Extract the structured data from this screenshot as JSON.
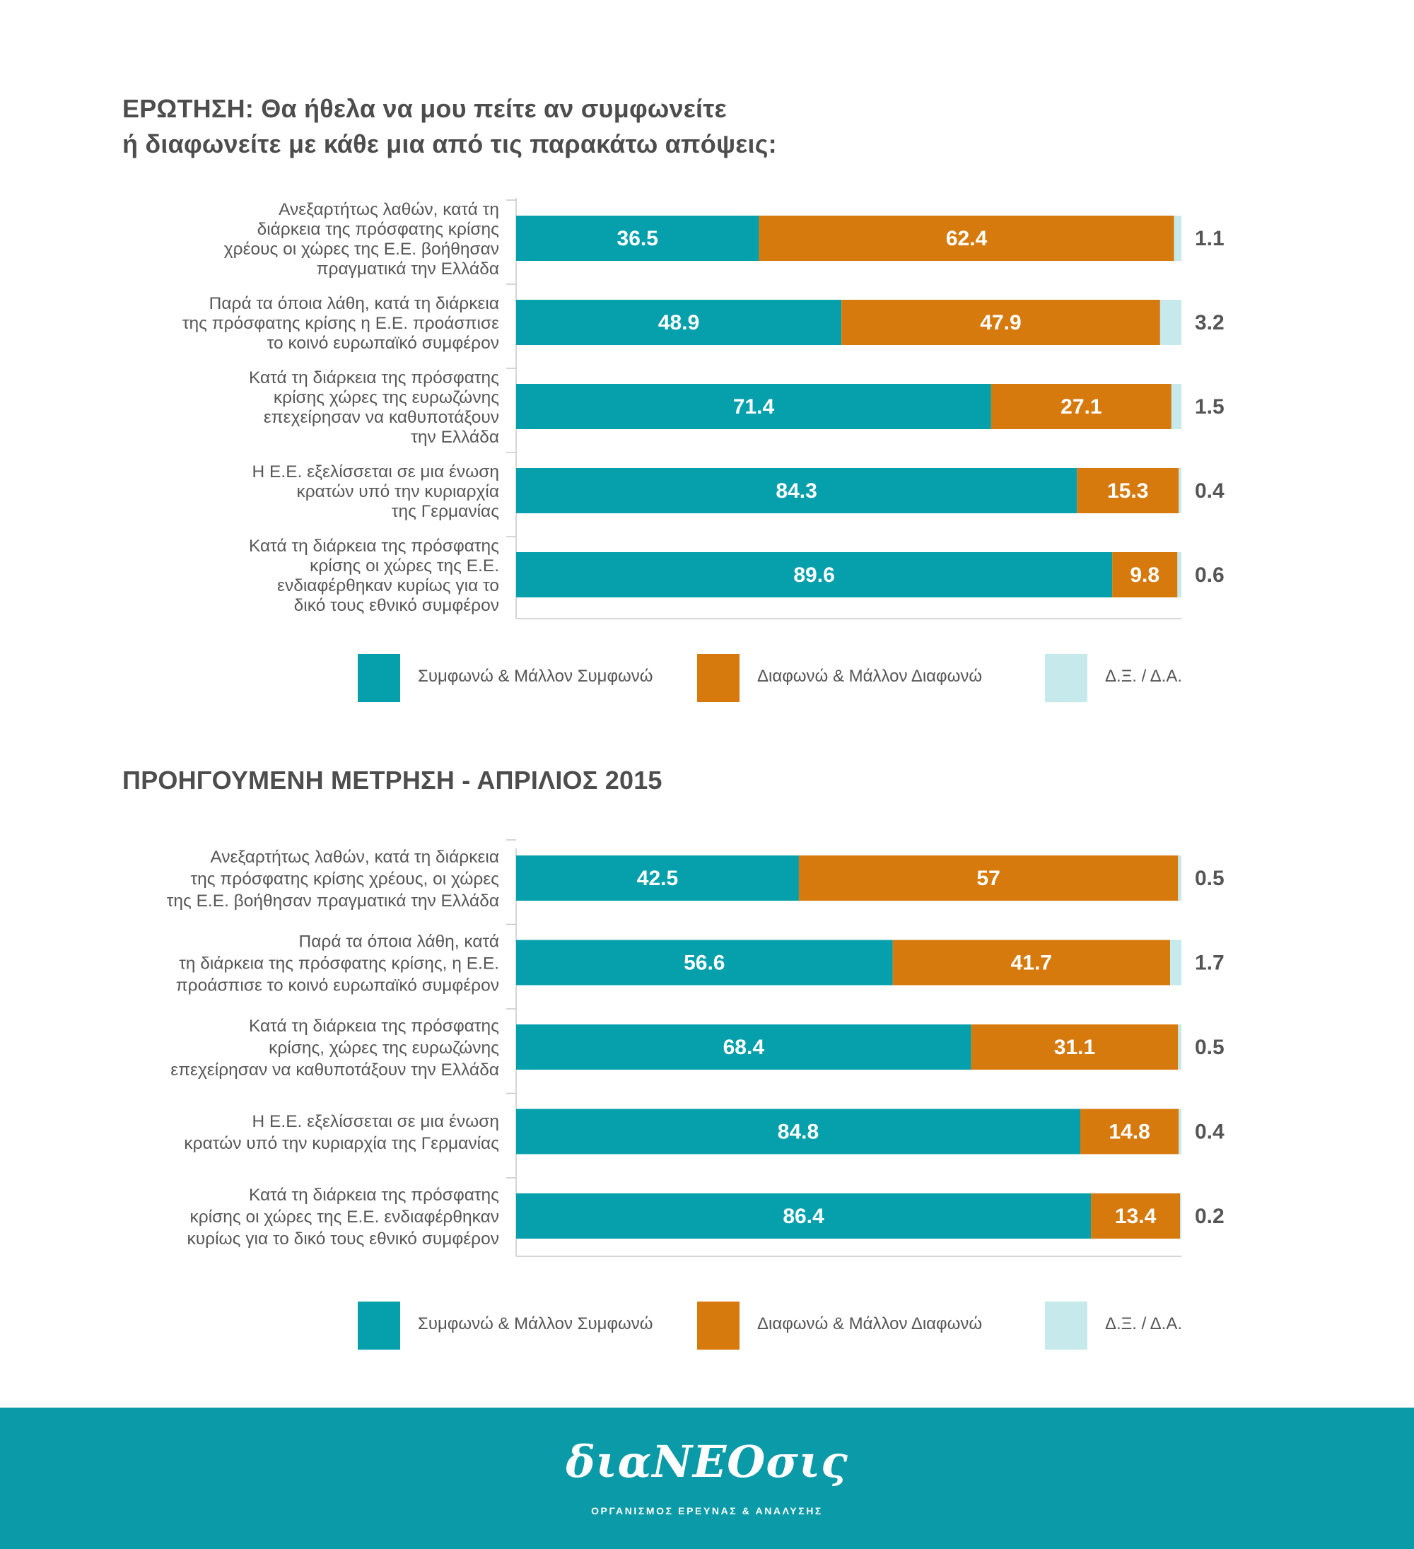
{
  "colors": {
    "agree": "#05a0ac",
    "disagree": "#d77a0e",
    "dk": "#c6e9ec",
    "axis": "#c8c8c8",
    "footer": "#0b9aa7"
  },
  "sections": [
    {
      "title_lines": [
        "ΕΡΩΤΗΣΗ: Θα ήθελα να μου πείτε αν συμφωνείτε",
        "ή διαφωνείτε με κάθε μια από τις παρακάτω απόψεις:"
      ]
    },
    {
      "title_lines": [
        "ΠΡΟΗΓΟΥΜΕΝΗ ΜΕΤΡΗΣΗ - ΑΠΡΙΛΙΟΣ 2015"
      ]
    }
  ],
  "legend": {
    "agree": "Συμφωνώ & Μάλλον Συμφωνώ",
    "disagree": "Διαφωνώ & Μάλλον Διαφωνώ",
    "dk": "Δ.Ξ. / Δ.Α."
  },
  "chart_data": [
    {
      "type": "bar",
      "orientation": "horizontal",
      "stacked": true,
      "xlim": [
        0,
        100
      ],
      "series_names": [
        "Συμφωνώ & Μάλλον Συμφωνώ",
        "Διαφωνώ & Μάλλον Διαφωνώ",
        "Δ.Ξ. / Δ.Α."
      ],
      "categories": [
        [
          "Ανεξαρτήτως λαθών, κατά τη",
          "διάρκεια της πρόσφατης κρίσης",
          "χρέους οι χώρες της Ε.Ε. βοήθησαν",
          "πραγματικά την Ελλάδα"
        ],
        [
          "Παρά τα όποια λάθη, κατά τη διάρκεια",
          "της πρόσφατης κρίσης η Ε.Ε. προάσπισε",
          "το κοινό ευρωπαϊκό συμφέρον"
        ],
        [
          "Κατά τη διάρκεια της πρόσφατης",
          "κρίσης χώρες της ευρωζώνης",
          "επεχείρησαν να καθυποτάξουν",
          "την Ελλάδα"
        ],
        [
          "Η Ε.Ε. εξελίσσεται σε μια ένωση",
          "κρατών υπό την κυριαρχία",
          "της Γερμανίας"
        ],
        [
          "Κατά τη διάρκεια της πρόσφατης",
          "κρίσης οι χώρες της Ε.Ε.",
          "ενδιαφέρθηκαν κυρίως για το",
          "δικό τους εθνικό συμφέρον"
        ]
      ],
      "values": [
        [
          36.5,
          62.4,
          1.1
        ],
        [
          48.9,
          47.9,
          3.2
        ],
        [
          71.4,
          27.1,
          1.5
        ],
        [
          84.3,
          15.3,
          0.4
        ],
        [
          89.6,
          9.8,
          0.6
        ]
      ],
      "labels": [
        [
          "36.5",
          "62.4",
          "1.1"
        ],
        [
          "48.9",
          "47.9",
          "3.2"
        ],
        [
          "71.4",
          "27.1",
          "1.5"
        ],
        [
          "84.3",
          "15.3",
          "0.4"
        ],
        [
          "89.6",
          "9.8",
          "0.6"
        ]
      ]
    },
    {
      "type": "bar",
      "orientation": "horizontal",
      "stacked": true,
      "xlim": [
        0,
        100
      ],
      "series_names": [
        "Συμφωνώ & Μάλλον Συμφωνώ",
        "Διαφωνώ & Μάλλον Διαφωνώ",
        "Δ.Ξ. / Δ.Α."
      ],
      "categories": [
        [
          "Ανεξαρτήτως λαθών, κατά τη διάρκεια",
          "της πρόσφατης κρίσης χρέους, οι χώρες",
          "της Ε.Ε. βοήθησαν πραγματικά την Ελλάδα"
        ],
        [
          "Παρά τα όποια λάθη, κατά",
          "τη διάρκεια της πρόσφατης κρίσης, η Ε.Ε.",
          "προάσπισε το κοινό ευρωπαϊκό συμφέρον"
        ],
        [
          "Κατά τη διάρκεια της πρόσφατης",
          "κρίσης, χώρες της ευρωζώνης",
          "επεχείρησαν να καθυποτάξουν την Ελλάδα"
        ],
        [
          "Η Ε.Ε. εξελίσσεται σε μια ένωση",
          "κρατών υπό την κυριαρχία της Γερμανίας"
        ],
        [
          "Κατά τη διάρκεια της πρόσφατης",
          "κρίσης οι χώρες της Ε.Ε. ενδιαφέρθηκαν",
          "κυρίως για το δικό τους εθνικό συμφέρον"
        ]
      ],
      "values": [
        [
          42.5,
          57,
          0.5
        ],
        [
          56.6,
          41.7,
          1.7
        ],
        [
          68.4,
          31.1,
          0.5
        ],
        [
          84.8,
          14.8,
          0.4
        ],
        [
          86.4,
          13.4,
          0.2
        ]
      ],
      "labels": [
        [
          "42.5",
          "57",
          "0.5"
        ],
        [
          "56.6",
          "41.7",
          "1.7"
        ],
        [
          "68.4",
          "31.1",
          "0.5"
        ],
        [
          "84.8",
          "14.8",
          "0.4"
        ],
        [
          "86.4",
          "13.4",
          "0.2"
        ]
      ]
    }
  ],
  "footer": {
    "brand": "διαΝΕΟσις",
    "tagline": "ΟΡΓΑΝΙΣΜΟΣ ΕΡΕΥΝΑΣ & ΑΝΑΛΥΣΗΣ"
  }
}
